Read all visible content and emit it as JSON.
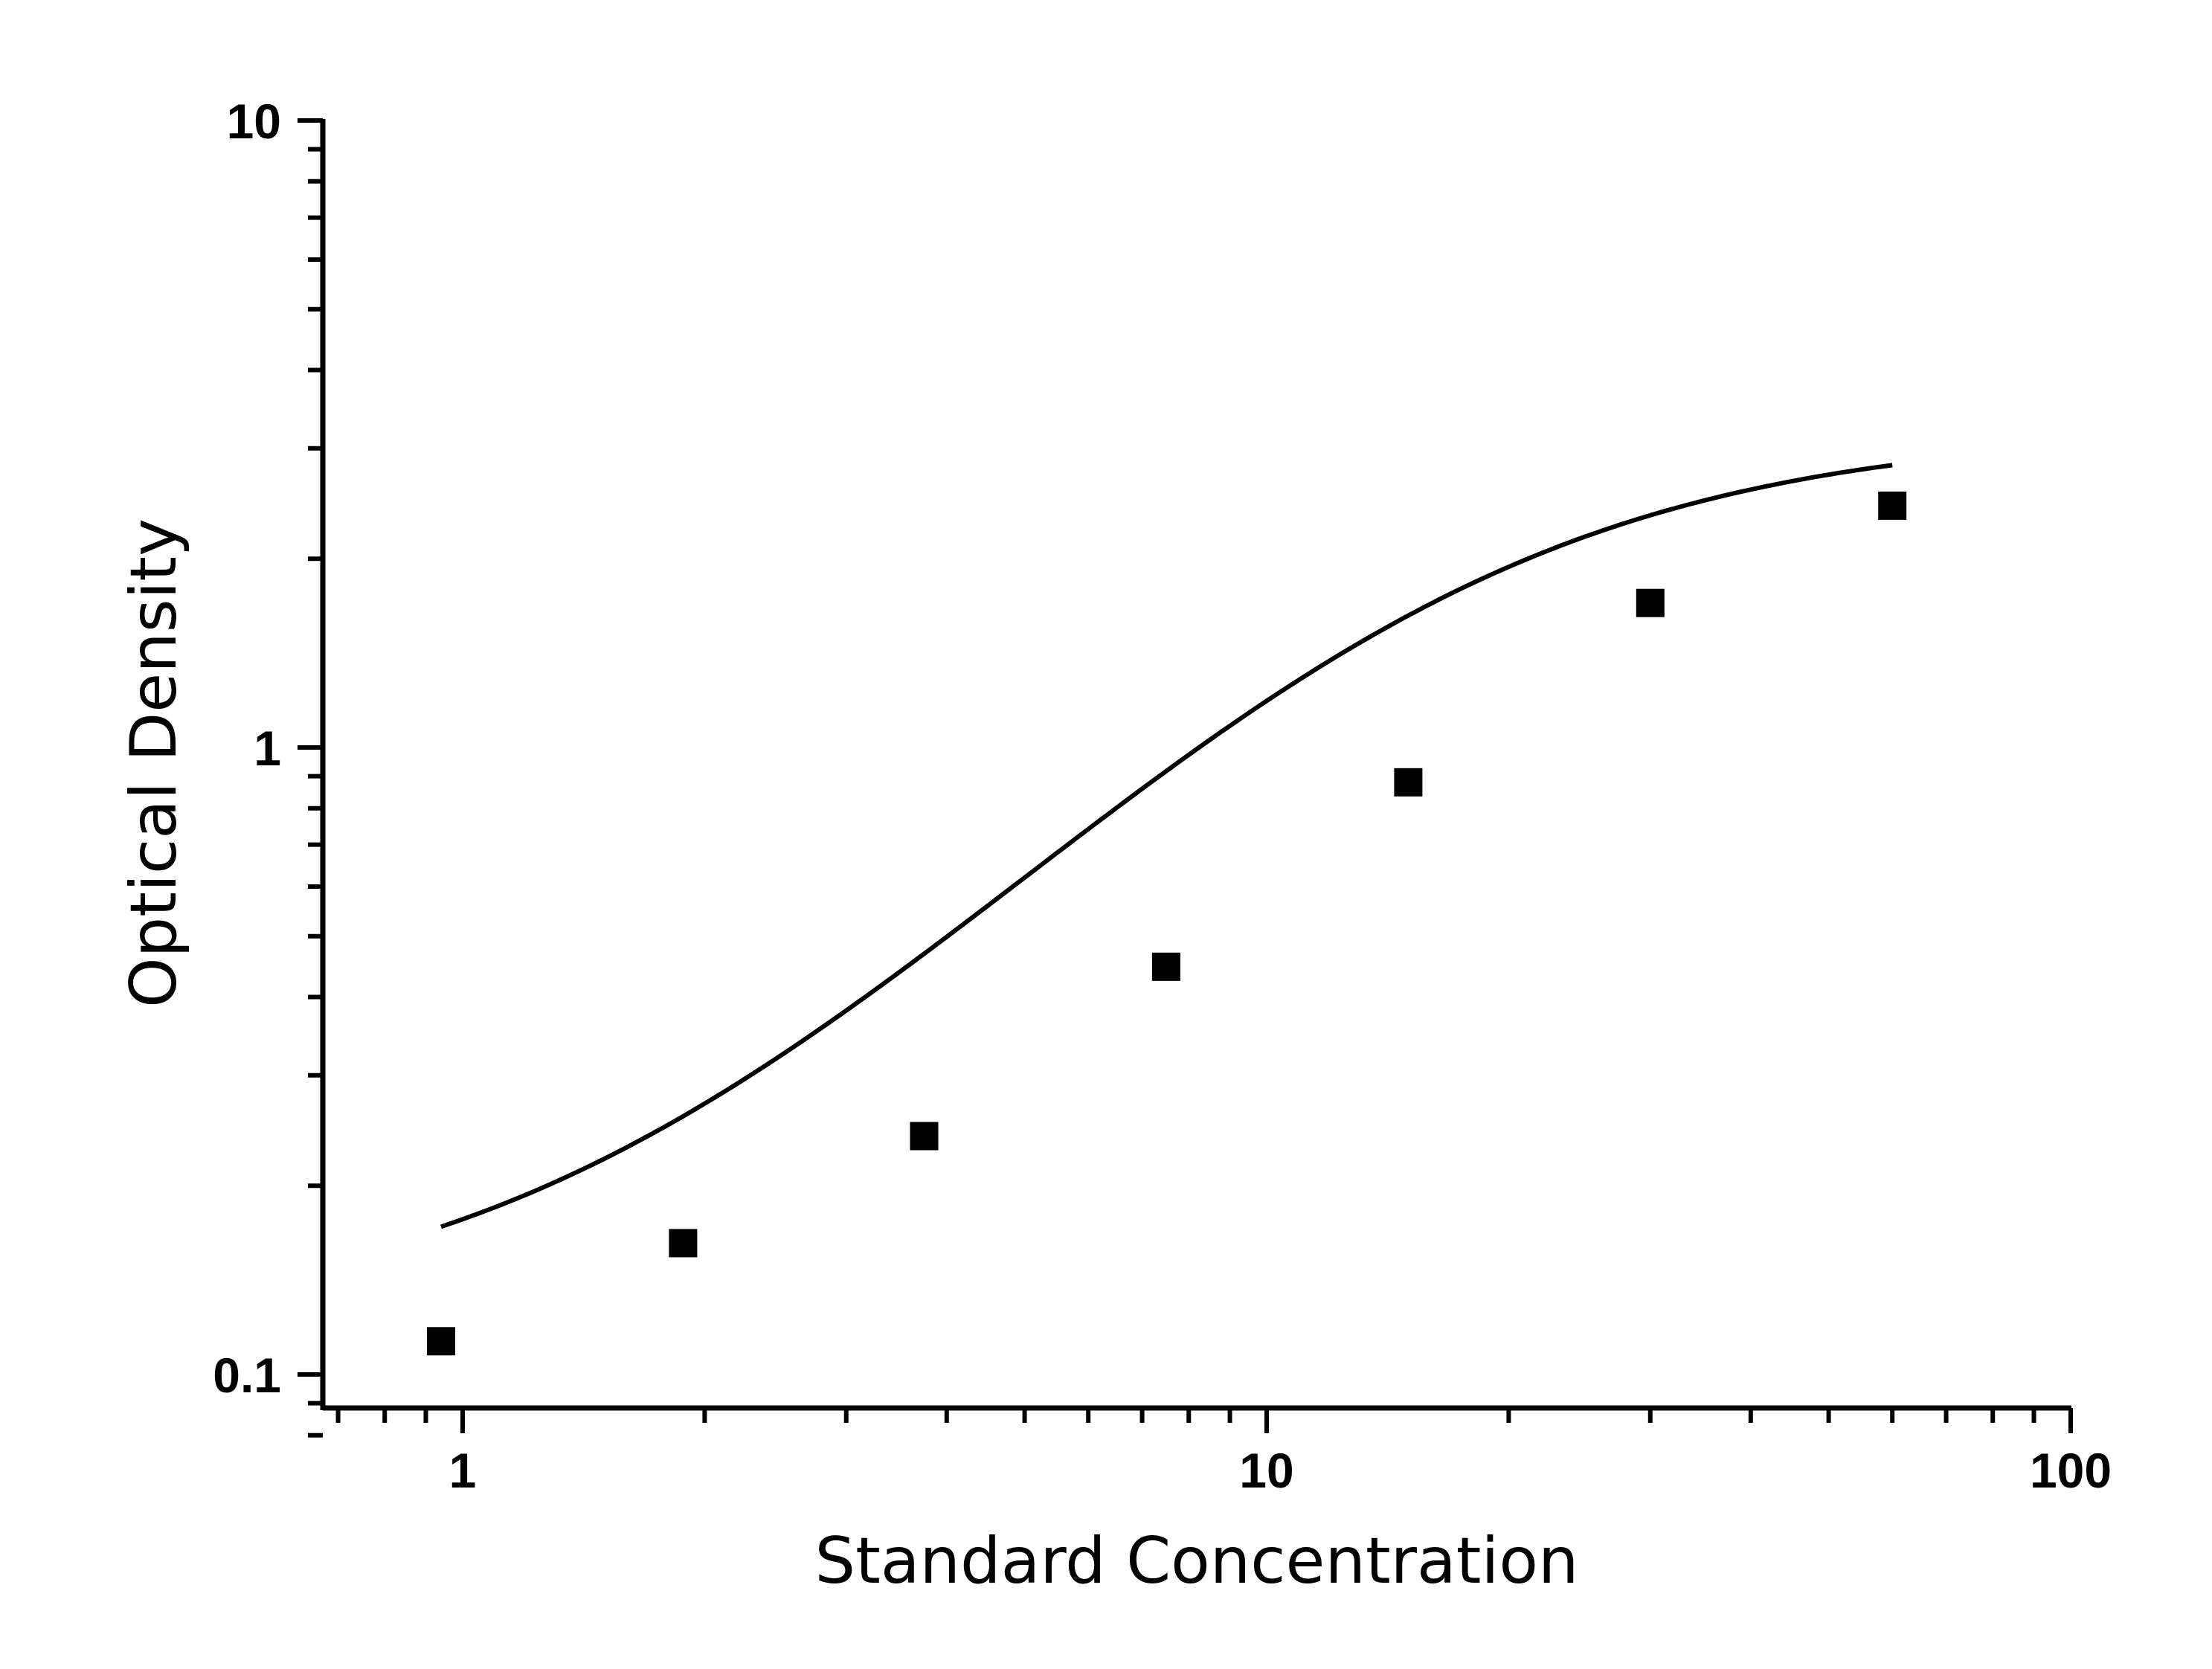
{
  "chart_data": {
    "type": "scatter",
    "title": "",
    "xlabel": "Standard Concentration",
    "ylabel": "Optical Density",
    "xscale": "log",
    "yscale": "log",
    "xlim": [
      0.68,
      100
    ],
    "ylim": [
      0.08,
      10
    ],
    "x_ticks": [
      {
        "value": 1,
        "label": "1"
      },
      {
        "value": 10,
        "label": "10"
      },
      {
        "value": 100,
        "label": "100"
      }
    ],
    "y_ticks": [
      {
        "value": 0.1,
        "label": "0.1"
      },
      {
        "value": 1,
        "label": "1"
      },
      {
        "value": 10,
        "label": "10"
      }
    ],
    "grid": false,
    "legend": "none",
    "series": [
      {
        "points": [
          {
            "x": 0.94,
            "y": 0.113
          },
          {
            "x": 1.88,
            "y": 0.162
          },
          {
            "x": 3.75,
            "y": 0.24
          },
          {
            "x": 7.5,
            "y": 0.447
          },
          {
            "x": 15,
            "y": 0.88
          },
          {
            "x": 30,
            "y": 1.7
          },
          {
            "x": 60,
            "y": 2.43
          }
        ],
        "marker": "square",
        "color": "#000000"
      }
    ],
    "fit_curve": {
      "model": "4PL",
      "A": 0.12,
      "D": 3.2,
      "C": 15.5,
      "B": 1.45,
      "x_range": [
        0.94,
        60
      ],
      "color": "#000000"
    }
  }
}
